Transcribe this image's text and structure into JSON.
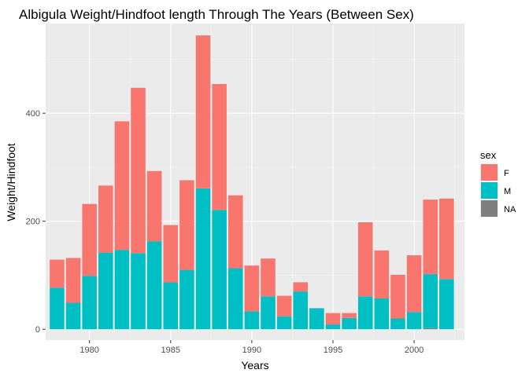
{
  "chart_data": {
    "type": "bar",
    "stacked": true,
    "title": "Albigula Weight/Hindfoot length Through The Years (Between Sex)",
    "xlabel": "Years",
    "ylabel": "Weight/Hindfoot",
    "xlim": [
      1977.3,
      2003.1
    ],
    "ylim": [
      -20,
      566
    ],
    "x_ticks": [
      1980,
      1985,
      1990,
      1995,
      2000
    ],
    "y_ticks": [
      0,
      200,
      400
    ],
    "grid": true,
    "legend": {
      "title": "sex",
      "position": "right",
      "entries": [
        {
          "label": "F",
          "color": "#F8766D"
        },
        {
          "label": "M",
          "color": "#00BFC4"
        },
        {
          "label": "NA",
          "color": "#7F7F7F"
        }
      ]
    },
    "x": [
      1978,
      1979,
      1980,
      1981,
      1982,
      1983,
      1984,
      1985,
      1986,
      1987,
      1988,
      1989,
      1990,
      1991,
      1992,
      1993,
      1994,
      1995,
      1996,
      1997,
      1998,
      1999,
      2000,
      2001,
      2002
    ],
    "series": [
      {
        "name": "NA",
        "color": "#7F7F7F",
        "values": [
          0,
          0,
          0,
          0,
          0,
          0,
          0,
          0,
          0,
          0,
          0,
          0,
          0,
          0,
          0,
          0,
          0,
          0,
          0,
          0,
          0,
          0,
          0,
          2,
          0
        ]
      },
      {
        "name": "M",
        "color": "#00BFC4",
        "values": [
          77,
          49,
          99,
          142,
          147,
          141,
          163,
          87,
          110,
          261,
          221,
          113,
          33,
          61,
          24,
          70,
          39,
          9,
          21,
          61,
          57,
          20,
          32,
          100,
          93
        ]
      },
      {
        "name": "F",
        "color": "#F8766D",
        "values": [
          52,
          83,
          133,
          124,
          238,
          306,
          130,
          106,
          166,
          283,
          233,
          135,
          85,
          70,
          38,
          17,
          0,
          21,
          9,
          137,
          89,
          81,
          105,
          138,
          149
        ]
      }
    ]
  }
}
